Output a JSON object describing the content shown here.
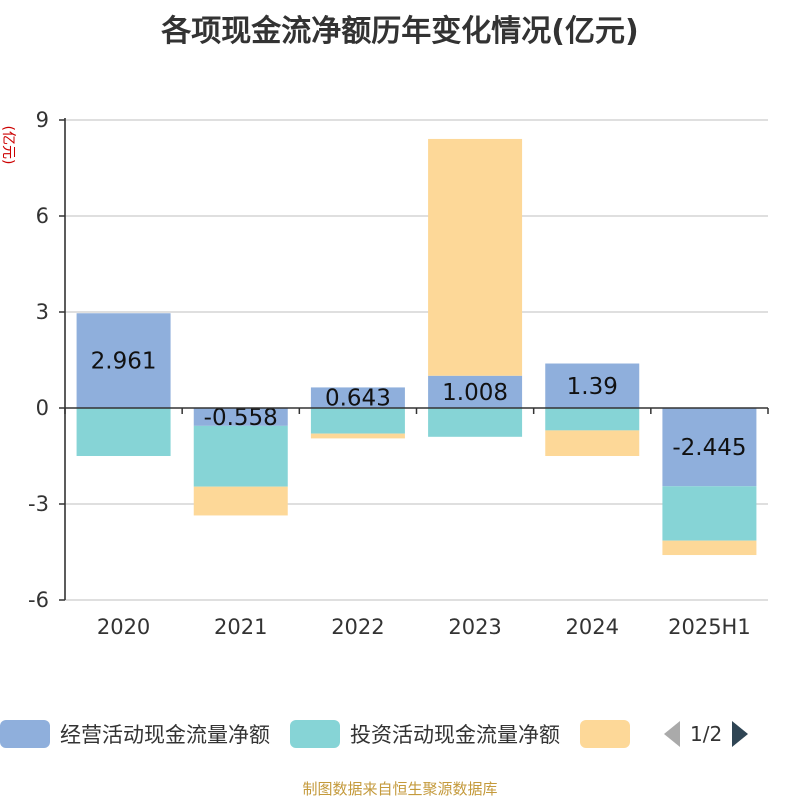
{
  "title": "各项现金流净额历年变化情况(亿元)",
  "source_note": "制图数据来自恒生聚源数据库",
  "legend_page": "1/2",
  "colors": {
    "operating": "#8fafdc",
    "investing": "#86d4d6",
    "financing": "#fdd898",
    "axis": "#333333",
    "grid": "#cccccc",
    "unit": "#cc0000"
  },
  "chart_data": {
    "type": "bar",
    "stacked": true,
    "title": "各项现金流净额历年变化情况(亿元)",
    "ylabel": "(亿元)",
    "ylim": [
      -6,
      9
    ],
    "yticks": [
      -6,
      -3,
      0,
      3,
      6,
      9
    ],
    "grid": true,
    "legend_position": "bottom",
    "categories": [
      "2020",
      "2021",
      "2022",
      "2023",
      "2024",
      "2025H1"
    ],
    "series": [
      {
        "name": "经营活动现金流量净额",
        "color_key": "operating",
        "values": [
          2.961,
          -0.558,
          0.643,
          1.008,
          1.39,
          -2.445
        ],
        "labels": [
          "2.961",
          "-0.558",
          "0.643",
          "1.008",
          "1.39",
          "-2.445"
        ]
      },
      {
        "name": "投资活动现金流量净额",
        "color_key": "investing",
        "values": [
          -1.5,
          -1.9,
          -0.8,
          -0.9,
          -0.7,
          -1.7
        ]
      },
      {
        "name": "",
        "color_key": "financing",
        "values": [
          0.0,
          -0.9,
          -0.15,
          7.4,
          -0.8,
          -0.45
        ]
      }
    ]
  }
}
